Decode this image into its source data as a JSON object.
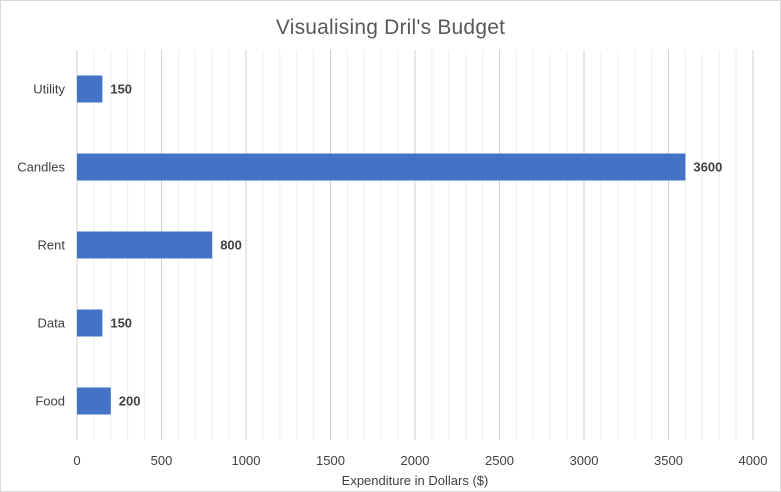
{
  "chart_data": {
    "type": "bar",
    "orientation": "horizontal",
    "title": "Visualising Dril's Budget",
    "xlabel": "Expenditure in Dollars ($)",
    "ylabel": "",
    "categories": [
      "Utility",
      "Candles",
      "Rent",
      "Data",
      "Food"
    ],
    "values": [
      150,
      3600,
      800,
      150,
      200
    ],
    "data_labels": [
      "150",
      "3600",
      "800",
      "150",
      "200"
    ],
    "xlim": [
      0,
      4000
    ],
    "major_ticks": [
      0,
      500,
      1000,
      1500,
      2000,
      2500,
      3000,
      3500,
      4000
    ],
    "tick_labels": [
      "0",
      "500",
      "1000",
      "1500",
      "2000",
      "2500",
      "3000",
      "3500",
      "4000"
    ],
    "minor_step": 100,
    "grid": true,
    "legend": "none",
    "bar_color": "#4472c4"
  }
}
